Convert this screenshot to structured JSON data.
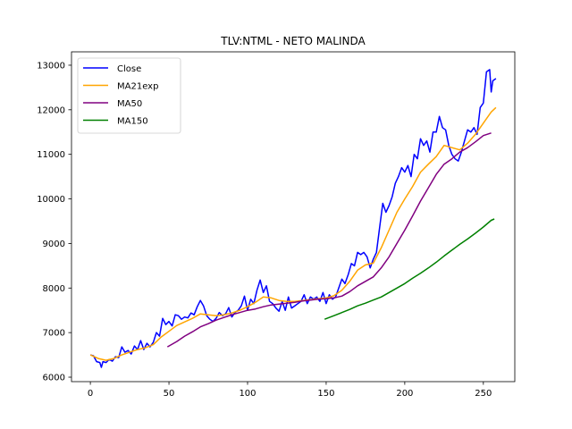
{
  "chart_data": {
    "type": "line",
    "title": "TLV:NTML - NETO MALINDA",
    "xlabel": "",
    "ylabel": "",
    "xlim": [
      -12,
      270
    ],
    "ylim": [
      5900,
      13300
    ],
    "xticks": [
      0,
      50,
      100,
      150,
      200,
      250
    ],
    "yticks": [
      6000,
      7000,
      8000,
      9000,
      10000,
      11000,
      12000,
      13000
    ],
    "grid": false,
    "legend_position": "upper-left",
    "series": [
      {
        "name": "Close",
        "color": "#0000ff",
        "points": [
          [
            0,
            6500
          ],
          [
            2,
            6480
          ],
          [
            4,
            6350
          ],
          [
            6,
            6330
          ],
          [
            7,
            6220
          ],
          [
            8,
            6350
          ],
          [
            10,
            6330
          ],
          [
            12,
            6400
          ],
          [
            14,
            6360
          ],
          [
            16,
            6460
          ],
          [
            18,
            6440
          ],
          [
            20,
            6680
          ],
          [
            22,
            6560
          ],
          [
            24,
            6600
          ],
          [
            26,
            6520
          ],
          [
            28,
            6700
          ],
          [
            30,
            6620
          ],
          [
            32,
            6820
          ],
          [
            34,
            6620
          ],
          [
            36,
            6760
          ],
          [
            38,
            6680
          ],
          [
            40,
            6780
          ],
          [
            42,
            7000
          ],
          [
            44,
            6920
          ],
          [
            46,
            7320
          ],
          [
            48,
            7180
          ],
          [
            50,
            7250
          ],
          [
            52,
            7150
          ],
          [
            54,
            7400
          ],
          [
            56,
            7380
          ],
          [
            58,
            7300
          ],
          [
            60,
            7350
          ],
          [
            62,
            7330
          ],
          [
            64,
            7440
          ],
          [
            66,
            7400
          ],
          [
            68,
            7580
          ],
          [
            70,
            7720
          ],
          [
            72,
            7600
          ],
          [
            74,
            7380
          ],
          [
            76,
            7300
          ],
          [
            78,
            7250
          ],
          [
            80,
            7320
          ],
          [
            82,
            7450
          ],
          [
            84,
            7380
          ],
          [
            86,
            7420
          ],
          [
            88,
            7560
          ],
          [
            90,
            7350
          ],
          [
            92,
            7450
          ],
          [
            94,
            7500
          ],
          [
            96,
            7600
          ],
          [
            98,
            7820
          ],
          [
            100,
            7500
          ],
          [
            102,
            7750
          ],
          [
            104,
            7650
          ],
          [
            106,
            7950
          ],
          [
            108,
            8180
          ],
          [
            110,
            7900
          ],
          [
            112,
            8050
          ],
          [
            114,
            7700
          ],
          [
            116,
            7650
          ],
          [
            118,
            7550
          ],
          [
            120,
            7480
          ],
          [
            122,
            7700
          ],
          [
            124,
            7500
          ],
          [
            126,
            7800
          ],
          [
            128,
            7550
          ],
          [
            130,
            7600
          ],
          [
            132,
            7650
          ],
          [
            134,
            7700
          ],
          [
            136,
            7850
          ],
          [
            138,
            7650
          ],
          [
            140,
            7800
          ],
          [
            142,
            7750
          ],
          [
            144,
            7800
          ],
          [
            146,
            7700
          ],
          [
            148,
            7900
          ],
          [
            150,
            7650
          ],
          [
            152,
            7850
          ],
          [
            154,
            7750
          ],
          [
            156,
            7800
          ],
          [
            158,
            8000
          ],
          [
            160,
            8200
          ],
          [
            162,
            8100
          ],
          [
            164,
            8300
          ],
          [
            166,
            8550
          ],
          [
            168,
            8500
          ],
          [
            170,
            8800
          ],
          [
            172,
            8750
          ],
          [
            174,
            8800
          ],
          [
            176,
            8700
          ],
          [
            178,
            8450
          ],
          [
            180,
            8650
          ],
          [
            182,
            8800
          ],
          [
            184,
            9350
          ],
          [
            186,
            9900
          ],
          [
            188,
            9700
          ],
          [
            190,
            9850
          ],
          [
            192,
            10050
          ],
          [
            194,
            10350
          ],
          [
            196,
            10500
          ],
          [
            198,
            10700
          ],
          [
            200,
            10600
          ],
          [
            202,
            10750
          ],
          [
            204,
            10500
          ],
          [
            206,
            11000
          ],
          [
            208,
            10900
          ],
          [
            210,
            11350
          ],
          [
            212,
            11200
          ],
          [
            214,
            11300
          ],
          [
            216,
            11050
          ],
          [
            218,
            11500
          ],
          [
            220,
            11500
          ],
          [
            222,
            11850
          ],
          [
            224,
            11600
          ],
          [
            226,
            11550
          ],
          [
            228,
            11200
          ],
          [
            230,
            11000
          ],
          [
            232,
            10900
          ],
          [
            234,
            10850
          ],
          [
            236,
            11050
          ],
          [
            238,
            11300
          ],
          [
            240,
            11550
          ],
          [
            242,
            11500
          ],
          [
            244,
            11600
          ],
          [
            246,
            11450
          ],
          [
            248,
            12050
          ],
          [
            250,
            12150
          ],
          [
            252,
            12850
          ],
          [
            254,
            12900
          ],
          [
            255,
            12400
          ],
          [
            256,
            12650
          ],
          [
            258,
            12700
          ]
        ]
      },
      {
        "name": "MA21exp",
        "color": "#ffa500",
        "points": [
          [
            0,
            6500
          ],
          [
            5,
            6420
          ],
          [
            10,
            6380
          ],
          [
            15,
            6420
          ],
          [
            20,
            6500
          ],
          [
            25,
            6560
          ],
          [
            30,
            6620
          ],
          [
            35,
            6660
          ],
          [
            40,
            6730
          ],
          [
            45,
            6900
          ],
          [
            50,
            7030
          ],
          [
            55,
            7160
          ],
          [
            60,
            7240
          ],
          [
            65,
            7320
          ],
          [
            70,
            7420
          ],
          [
            75,
            7400
          ],
          [
            80,
            7380
          ],
          [
            85,
            7400
          ],
          [
            90,
            7440
          ],
          [
            95,
            7500
          ],
          [
            100,
            7580
          ],
          [
            105,
            7680
          ],
          [
            110,
            7800
          ],
          [
            115,
            7780
          ],
          [
            120,
            7720
          ],
          [
            125,
            7700
          ],
          [
            130,
            7700
          ],
          [
            135,
            7720
          ],
          [
            140,
            7740
          ],
          [
            145,
            7760
          ],
          [
            150,
            7780
          ],
          [
            155,
            7830
          ],
          [
            160,
            7950
          ],
          [
            165,
            8150
          ],
          [
            170,
            8400
          ],
          [
            175,
            8520
          ],
          [
            180,
            8560
          ],
          [
            185,
            8900
          ],
          [
            190,
            9300
          ],
          [
            195,
            9700
          ],
          [
            200,
            10000
          ],
          [
            205,
            10280
          ],
          [
            210,
            10600
          ],
          [
            215,
            10780
          ],
          [
            220,
            10950
          ],
          [
            225,
            11200
          ],
          [
            230,
            11150
          ],
          [
            235,
            11100
          ],
          [
            240,
            11250
          ],
          [
            245,
            11450
          ],
          [
            250,
            11700
          ],
          [
            255,
            11950
          ],
          [
            258,
            12050
          ]
        ]
      },
      {
        "name": "MA50",
        "color": "#800080",
        "points": [
          [
            49,
            6680
          ],
          [
            55,
            6800
          ],
          [
            60,
            6920
          ],
          [
            65,
            7020
          ],
          [
            70,
            7130
          ],
          [
            75,
            7200
          ],
          [
            80,
            7280
          ],
          [
            85,
            7340
          ],
          [
            90,
            7400
          ],
          [
            95,
            7450
          ],
          [
            100,
            7500
          ],
          [
            105,
            7530
          ],
          [
            110,
            7580
          ],
          [
            115,
            7620
          ],
          [
            120,
            7640
          ],
          [
            125,
            7660
          ],
          [
            130,
            7680
          ],
          [
            135,
            7710
          ],
          [
            140,
            7730
          ],
          [
            145,
            7750
          ],
          [
            150,
            7760
          ],
          [
            155,
            7780
          ],
          [
            160,
            7820
          ],
          [
            165,
            7920
          ],
          [
            170,
            8050
          ],
          [
            175,
            8150
          ],
          [
            180,
            8250
          ],
          [
            185,
            8450
          ],
          [
            190,
            8700
          ],
          [
            195,
            9000
          ],
          [
            200,
            9300
          ],
          [
            205,
            9620
          ],
          [
            210,
            9950
          ],
          [
            215,
            10250
          ],
          [
            220,
            10550
          ],
          [
            225,
            10780
          ],
          [
            230,
            10900
          ],
          [
            235,
            11050
          ],
          [
            240,
            11150
          ],
          [
            245,
            11280
          ],
          [
            250,
            11420
          ],
          [
            255,
            11480
          ]
        ]
      },
      {
        "name": "MA150",
        "color": "#008000",
        "points": [
          [
            149,
            7300
          ],
          [
            155,
            7380
          ],
          [
            160,
            7450
          ],
          [
            165,
            7520
          ],
          [
            170,
            7600
          ],
          [
            175,
            7660
          ],
          [
            180,
            7730
          ],
          [
            185,
            7800
          ],
          [
            190,
            7900
          ],
          [
            195,
            8000
          ],
          [
            200,
            8100
          ],
          [
            205,
            8220
          ],
          [
            210,
            8330
          ],
          [
            215,
            8450
          ],
          [
            220,
            8580
          ],
          [
            225,
            8720
          ],
          [
            230,
            8850
          ],
          [
            235,
            8980
          ],
          [
            240,
            9100
          ],
          [
            245,
            9230
          ],
          [
            250,
            9370
          ],
          [
            255,
            9520
          ],
          [
            257,
            9550
          ]
        ]
      }
    ]
  }
}
